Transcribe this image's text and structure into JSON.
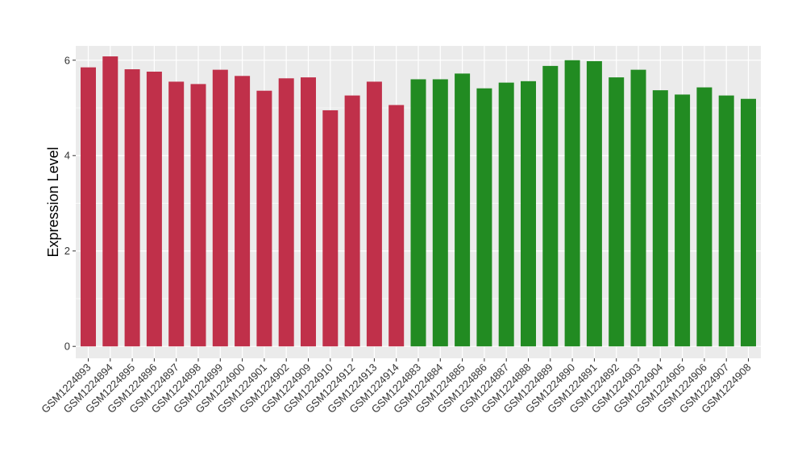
{
  "chart_data": {
    "type": "bar",
    "ylabel": "Expression Level",
    "xlabel": "",
    "ylim": [
      -0.25,
      6.3
    ],
    "y_ticks": [
      0,
      2,
      4,
      6
    ],
    "grid": true,
    "background": "#EBEBEB",
    "grid_color": "#FFFFFF",
    "categories": [
      "GSM1224893",
      "GSM1224894",
      "GSM1224895",
      "GSM1224896",
      "GSM1224897",
      "GSM1224898",
      "GSM1224899",
      "GSM1224900",
      "GSM1224901",
      "GSM1224902",
      "GSM1224909",
      "GSM1224910",
      "GSM1224912",
      "GSM1224913",
      "GSM1224914",
      "GSM1224883",
      "GSM1224884",
      "GSM1224885",
      "GSM1224886",
      "GSM1224887",
      "GSM1224888",
      "GSM1224889",
      "GSM1224890",
      "GSM1224891",
      "GSM1224892",
      "GSM1224903",
      "GSM1224904",
      "GSM1224905",
      "GSM1224906",
      "GSM1224907",
      "GSM1224908"
    ],
    "values": [
      5.85,
      6.08,
      5.81,
      5.76,
      5.55,
      5.5,
      5.8,
      5.67,
      5.36,
      5.62,
      5.64,
      4.95,
      5.26,
      5.55,
      5.06,
      5.6,
      5.6,
      5.72,
      5.41,
      5.53,
      5.56,
      5.88,
      6.0,
      5.98,
      5.64,
      5.8,
      5.37,
      5.28,
      5.43,
      5.26,
      5.19
    ],
    "groups": [
      {
        "color": "#C0304A",
        "count": 15
      },
      {
        "color": "#228B22",
        "count": 16
      }
    ]
  }
}
